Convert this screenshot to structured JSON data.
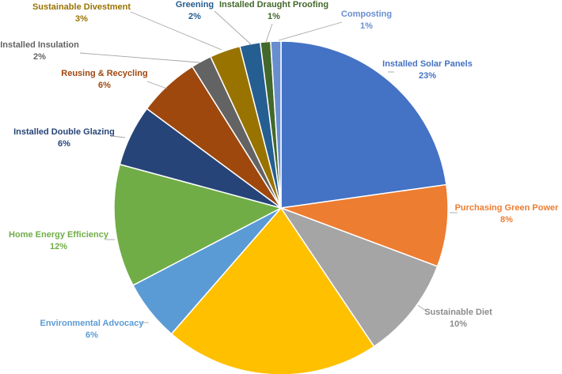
{
  "chart_data": {
    "type": "pie",
    "title": "",
    "slices": [
      {
        "name": "Installed Solar Panels",
        "value": 23,
        "label": "23%",
        "color": "#4472C4",
        "label_color": "#4472C4"
      },
      {
        "name": "Purchasing Green Power",
        "value": 8,
        "label": "8%",
        "color": "#ED7D31",
        "label_color": "#ED7D31"
      },
      {
        "name": "Sustainable Diet",
        "value": 10,
        "label": "10%",
        "color": "#A5A5A5",
        "label_color": "#8C8C8C"
      },
      {
        "name": "",
        "value": 21,
        "label": "",
        "color": "#FFC000",
        "label_color": "#FFC000"
      },
      {
        "name": "Environmental Advocacy",
        "value": 6,
        "label": "6%",
        "color": "#5B9BD5",
        "label_color": "#5B9BD5"
      },
      {
        "name": "Home Energy Efficiency",
        "value": 12,
        "label": "12%",
        "color": "#70AD47",
        "label_color": "#70AD47"
      },
      {
        "name": "Installed Double Glazing",
        "value": 6,
        "label": "6%",
        "color": "#264478",
        "label_color": "#264478"
      },
      {
        "name": "Reusing & Recycling",
        "value": 6,
        "label": "6%",
        "color": "#9E480E",
        "label_color": "#9E480E"
      },
      {
        "name": "Installed Insulation",
        "value": 2,
        "label": "2%",
        "color": "#636363",
        "label_color": "#636363"
      },
      {
        "name": "Sustainable Divestment",
        "value": 3,
        "label": "3%",
        "color": "#997300",
        "label_color": "#997300"
      },
      {
        "name": "Greening",
        "value": 2,
        "label": "2%",
        "color": "#255E91",
        "label_color": "#255E91"
      },
      {
        "name": "Installed Draught Proofing",
        "value": 1,
        "label": "1%",
        "color": "#43682B",
        "label_color": "#43682B"
      },
      {
        "name": "Composting",
        "value": 1,
        "label": "1%",
        "color": "#698ED0",
        "label_color": "#698ED0"
      }
    ]
  }
}
